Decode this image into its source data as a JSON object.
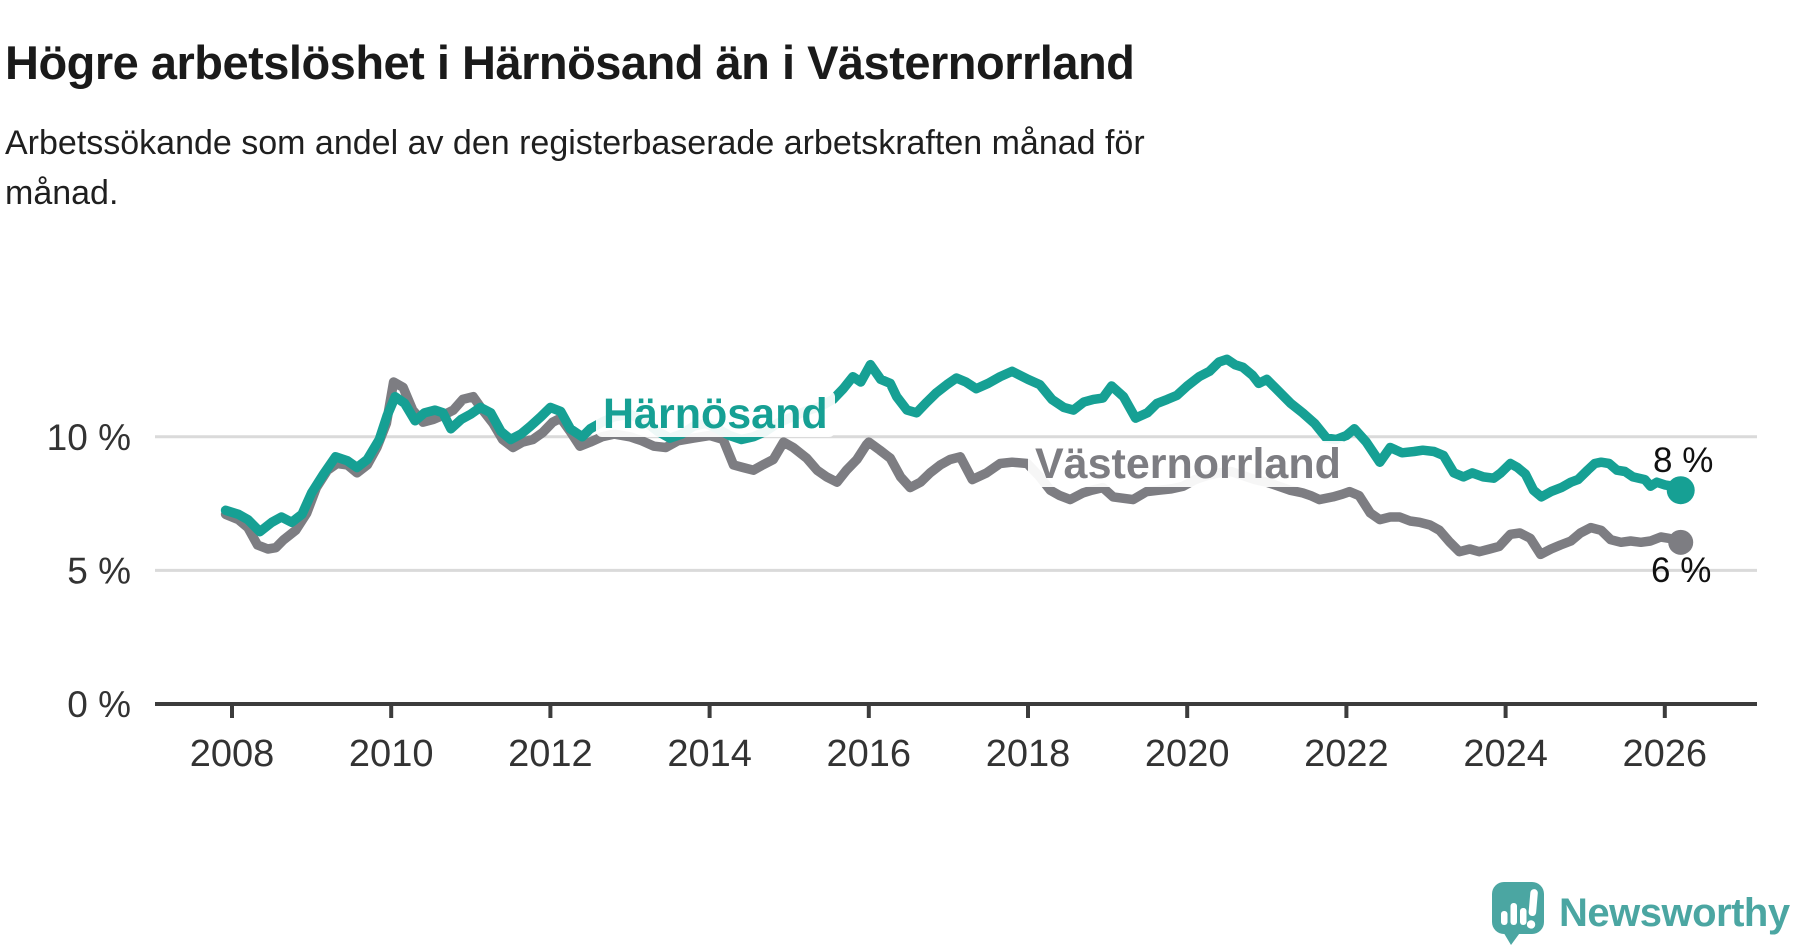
{
  "title": "Högre arbetslöshet i Härnösand än i Västernorrland",
  "subtitle_lines": [
    "Arbetssökande som andel av den registerbaserade arbetskraften månad för",
    "månad."
  ],
  "branding": {
    "name": "Newsworthy"
  },
  "colors": {
    "harnosand": "#16a094",
    "vasternorrland": "#7d7d82",
    "grid": "#dadada",
    "axis": "#3c3c3c",
    "tick_text": "#333333",
    "logo": "#4ba6a2"
  },
  "chart_data": {
    "type": "line",
    "title": "Högre arbetslöshet i Härnösand än i Västernorrland",
    "subtitle": "Arbetssökande som andel av den registerbaserade arbetskraften månad för månad.",
    "xlabel": "",
    "ylabel": "",
    "x_axis": {
      "ticks": [
        2008,
        2010,
        2012,
        2014,
        2016,
        2018,
        2020,
        2022,
        2024,
        2026
      ],
      "range": [
        2007.05,
        2027.1
      ]
    },
    "y_axis": {
      "ticks": [
        {
          "value": 0,
          "label": "0 %"
        },
        {
          "value": 5,
          "label": "5 %"
        },
        {
          "value": 10,
          "label": "10 %"
        }
      ],
      "range": [
        0,
        13.5
      ],
      "unit": "%"
    },
    "grid": "horizontal",
    "legend": "inline-labels",
    "series": [
      {
        "name": "Västernorrland",
        "color": "#7d7d82",
        "end_label": "6 %",
        "end_value": 6,
        "points": [
          [
            2007.92,
            7.1
          ],
          [
            2008.08,
            6.9
          ],
          [
            2008.2,
            6.6
          ],
          [
            2008.32,
            5.95
          ],
          [
            2008.45,
            5.8
          ],
          [
            2008.55,
            5.85
          ],
          [
            2008.65,
            6.15
          ],
          [
            2008.8,
            6.5
          ],
          [
            2008.94,
            7.15
          ],
          [
            2009.06,
            8.1
          ],
          [
            2009.2,
            8.75
          ],
          [
            2009.32,
            9.0
          ],
          [
            2009.45,
            8.95
          ],
          [
            2009.57,
            8.65
          ],
          [
            2009.7,
            8.95
          ],
          [
            2009.82,
            9.6
          ],
          [
            2009.94,
            10.5
          ],
          [
            2010.03,
            12.05
          ],
          [
            2010.15,
            11.85
          ],
          [
            2010.27,
            11.0
          ],
          [
            2010.4,
            10.55
          ],
          [
            2010.53,
            10.65
          ],
          [
            2010.65,
            10.8
          ],
          [
            2010.78,
            11.0
          ],
          [
            2010.9,
            11.4
          ],
          [
            2011.03,
            11.5
          ],
          [
            2011.15,
            11.0
          ],
          [
            2011.28,
            10.5
          ],
          [
            2011.4,
            9.9
          ],
          [
            2011.53,
            9.6
          ],
          [
            2011.65,
            9.8
          ],
          [
            2011.78,
            9.9
          ],
          [
            2011.9,
            10.15
          ],
          [
            2012.03,
            10.55
          ],
          [
            2012.13,
            10.7
          ],
          [
            2012.25,
            10.2
          ],
          [
            2012.37,
            9.65
          ],
          [
            2012.5,
            9.8
          ],
          [
            2012.65,
            10.0
          ],
          [
            2012.8,
            10.1
          ],
          [
            2013.0,
            10.0
          ],
          [
            2013.15,
            9.85
          ],
          [
            2013.3,
            9.65
          ],
          [
            2013.45,
            9.6
          ],
          [
            2013.6,
            9.85
          ],
          [
            2013.8,
            9.95
          ],
          [
            2014.0,
            10.05
          ],
          [
            2014.17,
            9.9
          ],
          [
            2014.3,
            8.95
          ],
          [
            2014.42,
            8.85
          ],
          [
            2014.55,
            8.75
          ],
          [
            2014.67,
            8.95
          ],
          [
            2014.8,
            9.15
          ],
          [
            2014.93,
            9.8
          ],
          [
            2015.05,
            9.6
          ],
          [
            2015.22,
            9.2
          ],
          [
            2015.35,
            8.75
          ],
          [
            2015.47,
            8.5
          ],
          [
            2015.6,
            8.3
          ],
          [
            2015.72,
            8.75
          ],
          [
            2015.85,
            9.15
          ],
          [
            2015.97,
            9.7
          ],
          [
            2016.0,
            9.8
          ],
          [
            2016.14,
            9.5
          ],
          [
            2016.27,
            9.2
          ],
          [
            2016.4,
            8.5
          ],
          [
            2016.52,
            8.1
          ],
          [
            2016.65,
            8.3
          ],
          [
            2016.77,
            8.65
          ],
          [
            2016.9,
            8.95
          ],
          [
            2017.02,
            9.15
          ],
          [
            2017.15,
            9.25
          ],
          [
            2017.3,
            8.4
          ],
          [
            2017.48,
            8.65
          ],
          [
            2017.65,
            9.0
          ],
          [
            2017.8,
            9.05
          ],
          [
            2017.99,
            9.0
          ],
          [
            2018.15,
            8.5
          ],
          [
            2018.28,
            8.0
          ],
          [
            2018.4,
            7.8
          ],
          [
            2018.53,
            7.65
          ],
          [
            2018.69,
            7.9
          ],
          [
            2018.8,
            8.0
          ],
          [
            2018.94,
            8.1
          ],
          [
            2019.07,
            7.75
          ],
          [
            2019.2,
            7.7
          ],
          [
            2019.32,
            7.65
          ],
          [
            2019.49,
            7.95
          ],
          [
            2019.65,
            8.0
          ],
          [
            2019.8,
            8.05
          ],
          [
            2019.95,
            8.15
          ],
          [
            2020.1,
            8.4
          ],
          [
            2020.25,
            8.55
          ],
          [
            2020.4,
            8.65
          ],
          [
            2020.55,
            8.7
          ],
          [
            2020.7,
            8.55
          ],
          [
            2020.85,
            8.4
          ],
          [
            2021.0,
            8.3
          ],
          [
            2021.15,
            8.15
          ],
          [
            2021.29,
            8.0
          ],
          [
            2021.45,
            7.9
          ],
          [
            2021.55,
            7.8
          ],
          [
            2021.66,
            7.65
          ],
          [
            2021.83,
            7.75
          ],
          [
            2021.95,
            7.85
          ],
          [
            2022.04,
            7.95
          ],
          [
            2022.16,
            7.8
          ],
          [
            2022.3,
            7.15
          ],
          [
            2022.42,
            6.9
          ],
          [
            2022.55,
            7.0
          ],
          [
            2022.67,
            7.0
          ],
          [
            2022.8,
            6.85
          ],
          [
            2022.92,
            6.8
          ],
          [
            2023.05,
            6.7
          ],
          [
            2023.17,
            6.5
          ],
          [
            2023.3,
            6.05
          ],
          [
            2023.42,
            5.7
          ],
          [
            2023.55,
            5.8
          ],
          [
            2023.67,
            5.7
          ],
          [
            2023.8,
            5.8
          ],
          [
            2023.92,
            5.9
          ],
          [
            2024.06,
            6.35
          ],
          [
            2024.18,
            6.4
          ],
          [
            2024.31,
            6.2
          ],
          [
            2024.44,
            5.6
          ],
          [
            2024.57,
            5.8
          ],
          [
            2024.69,
            5.95
          ],
          [
            2024.82,
            6.1
          ],
          [
            2024.94,
            6.4
          ],
          [
            2025.07,
            6.6
          ],
          [
            2025.2,
            6.5
          ],
          [
            2025.32,
            6.15
          ],
          [
            2025.45,
            6.05
          ],
          [
            2025.57,
            6.1
          ],
          [
            2025.7,
            6.05
          ],
          [
            2025.82,
            6.1
          ],
          [
            2025.95,
            6.25
          ],
          [
            2026.05,
            6.2
          ],
          [
            2026.2,
            6.05
          ]
        ]
      },
      {
        "name": "Härnösand",
        "color": "#16a094",
        "end_label": "8 %",
        "end_value": 8,
        "points": [
          [
            2007.92,
            7.25
          ],
          [
            2008.08,
            7.1
          ],
          [
            2008.2,
            6.9
          ],
          [
            2008.35,
            6.45
          ],
          [
            2008.5,
            6.8
          ],
          [
            2008.62,
            7.0
          ],
          [
            2008.75,
            6.8
          ],
          [
            2008.88,
            7.1
          ],
          [
            2009.0,
            7.9
          ],
          [
            2009.15,
            8.6
          ],
          [
            2009.3,
            9.25
          ],
          [
            2009.45,
            9.1
          ],
          [
            2009.57,
            8.85
          ],
          [
            2009.7,
            9.15
          ],
          [
            2009.85,
            9.9
          ],
          [
            2009.95,
            10.8
          ],
          [
            2010.05,
            11.5
          ],
          [
            2010.17,
            11.25
          ],
          [
            2010.3,
            10.6
          ],
          [
            2010.42,
            10.9
          ],
          [
            2010.55,
            11.0
          ],
          [
            2010.65,
            10.9
          ],
          [
            2010.75,
            10.3
          ],
          [
            2010.88,
            10.65
          ],
          [
            2011.0,
            10.85
          ],
          [
            2011.12,
            11.1
          ],
          [
            2011.25,
            10.9
          ],
          [
            2011.38,
            10.2
          ],
          [
            2011.5,
            9.9
          ],
          [
            2011.63,
            10.1
          ],
          [
            2011.75,
            10.4
          ],
          [
            2011.88,
            10.75
          ],
          [
            2012.0,
            11.1
          ],
          [
            2012.13,
            10.95
          ],
          [
            2012.25,
            10.3
          ],
          [
            2012.4,
            10.0
          ],
          [
            2012.5,
            10.3
          ],
          [
            2012.65,
            10.55
          ],
          [
            2012.8,
            10.75
          ],
          [
            2013.0,
            10.85
          ],
          [
            2013.2,
            10.55
          ],
          [
            2013.35,
            10.2
          ],
          [
            2013.5,
            9.95
          ],
          [
            2013.65,
            10.1
          ],
          [
            2013.8,
            10.4
          ],
          [
            2013.95,
            10.5
          ],
          [
            2014.1,
            10.3
          ],
          [
            2014.25,
            10.05
          ],
          [
            2014.4,
            9.9
          ],
          [
            2014.55,
            10.0
          ],
          [
            2014.7,
            10.2
          ],
          [
            2014.85,
            10.5
          ],
          [
            2015.0,
            10.7
          ],
          [
            2015.2,
            10.95
          ],
          [
            2015.4,
            11.15
          ],
          [
            2015.55,
            11.4
          ],
          [
            2015.68,
            11.8
          ],
          [
            2015.8,
            12.25
          ],
          [
            2015.9,
            12.05
          ],
          [
            2016.02,
            12.7
          ],
          [
            2016.15,
            12.15
          ],
          [
            2016.27,
            12.0
          ],
          [
            2016.35,
            11.5
          ],
          [
            2016.48,
            11.0
          ],
          [
            2016.6,
            10.9
          ],
          [
            2016.73,
            11.3
          ],
          [
            2016.85,
            11.65
          ],
          [
            2016.98,
            11.95
          ],
          [
            2017.1,
            12.2
          ],
          [
            2017.22,
            12.05
          ],
          [
            2017.35,
            11.8
          ],
          [
            2017.5,
            12.0
          ],
          [
            2017.65,
            12.25
          ],
          [
            2017.8,
            12.45
          ],
          [
            2018.0,
            12.15
          ],
          [
            2018.15,
            11.95
          ],
          [
            2018.3,
            11.4
          ],
          [
            2018.45,
            11.1
          ],
          [
            2018.57,
            11.0
          ],
          [
            2018.7,
            11.3
          ],
          [
            2018.82,
            11.4
          ],
          [
            2018.94,
            11.45
          ],
          [
            2019.05,
            11.9
          ],
          [
            2019.2,
            11.5
          ],
          [
            2019.35,
            10.7
          ],
          [
            2019.5,
            10.9
          ],
          [
            2019.62,
            11.25
          ],
          [
            2019.75,
            11.4
          ],
          [
            2019.87,
            11.55
          ],
          [
            2020.0,
            11.9
          ],
          [
            2020.15,
            12.25
          ],
          [
            2020.28,
            12.45
          ],
          [
            2020.4,
            12.8
          ],
          [
            2020.5,
            12.9
          ],
          [
            2020.6,
            12.7
          ],
          [
            2020.7,
            12.6
          ],
          [
            2020.82,
            12.3
          ],
          [
            2020.9,
            12.0
          ],
          [
            2021.0,
            12.15
          ],
          [
            2021.1,
            11.85
          ],
          [
            2021.3,
            11.25
          ],
          [
            2021.45,
            10.9
          ],
          [
            2021.6,
            10.5
          ],
          [
            2021.75,
            9.95
          ],
          [
            2021.87,
            9.9
          ],
          [
            2022.0,
            10.05
          ],
          [
            2022.1,
            10.3
          ],
          [
            2022.25,
            9.8
          ],
          [
            2022.42,
            9.05
          ],
          [
            2022.55,
            9.6
          ],
          [
            2022.7,
            9.4
          ],
          [
            2022.85,
            9.45
          ],
          [
            2022.96,
            9.5
          ],
          [
            2023.1,
            9.45
          ],
          [
            2023.22,
            9.3
          ],
          [
            2023.35,
            8.65
          ],
          [
            2023.47,
            8.5
          ],
          [
            2023.58,
            8.65
          ],
          [
            2023.72,
            8.5
          ],
          [
            2023.85,
            8.45
          ],
          [
            2023.94,
            8.65
          ],
          [
            2024.06,
            9.0
          ],
          [
            2024.15,
            8.85
          ],
          [
            2024.25,
            8.6
          ],
          [
            2024.35,
            8.0
          ],
          [
            2024.45,
            7.75
          ],
          [
            2024.57,
            7.95
          ],
          [
            2024.7,
            8.1
          ],
          [
            2024.82,
            8.3
          ],
          [
            2024.91,
            8.4
          ],
          [
            2025.03,
            8.75
          ],
          [
            2025.12,
            9.0
          ],
          [
            2025.2,
            9.05
          ],
          [
            2025.3,
            9.0
          ],
          [
            2025.4,
            8.75
          ],
          [
            2025.5,
            8.7
          ],
          [
            2025.6,
            8.5
          ],
          [
            2025.75,
            8.4
          ],
          [
            2025.82,
            8.15
          ],
          [
            2025.9,
            8.3
          ],
          [
            2026.0,
            8.2
          ],
          [
            2026.1,
            8.15
          ],
          [
            2026.2,
            8.0
          ]
        ]
      }
    ]
  }
}
